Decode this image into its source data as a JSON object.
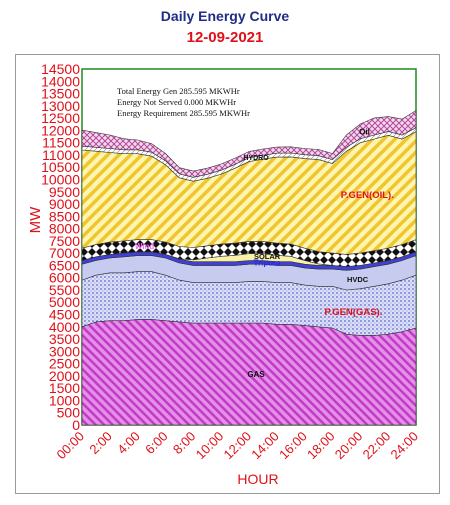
{
  "title": "Daily Energy Curve",
  "subtitle": "12-09-2021",
  "chart_data": {
    "type": "area",
    "stacked": true,
    "xlabel": "HOUR",
    "ylabel": "MW",
    "ylim": [
      0,
      14500
    ],
    "ytick_step": 500,
    "xlim": [
      0,
      24
    ],
    "xticks": [
      "00:00",
      "2:00",
      "4:00",
      "6:00",
      "8:00",
      "10:00",
      "12:00",
      "14:00",
      "16:00",
      "18:00",
      "20:00",
      "22:00",
      "24:00"
    ],
    "x": [
      0,
      1,
      2,
      3,
      4,
      5,
      6,
      7,
      8,
      9,
      10,
      11,
      12,
      13,
      14,
      15,
      16,
      17,
      18,
      19,
      20,
      21,
      22,
      23,
      24
    ],
    "annotations": [
      "Total Energy Gen 285.595 MKWHr",
      "Energy Not Served  0.000 MKWHr",
      "Energy Requirement    285.595 MKWHr"
    ],
    "series": [
      {
        "name": "GAS",
        "color": "#d24fd6",
        "values": [
          4000,
          4200,
          4250,
          4250,
          4300,
          4300,
          4250,
          4200,
          4150,
          4150,
          4150,
          4150,
          4150,
          4150,
          4100,
          4100,
          4050,
          4000,
          3950,
          3700,
          3650,
          3650,
          3700,
          3800,
          3950
        ]
      },
      {
        "name": "P.GEN(GAS).",
        "color": "#6c78d8",
        "values": [
          1900,
          1900,
          1950,
          1950,
          1950,
          1950,
          1850,
          1700,
          1650,
          1650,
          1650,
          1650,
          1700,
          1700,
          1700,
          1700,
          1650,
          1650,
          1700,
          1800,
          1900,
          2000,
          2050,
          2100,
          2150
        ]
      },
      {
        "name": "HVDC",
        "color": "#bfc3ee",
        "values": [
          650,
          600,
          600,
          650,
          650,
          650,
          700,
          700,
          700,
          700,
          700,
          700,
          700,
          700,
          700,
          700,
          700,
          700,
          700,
          800,
          800,
          800,
          800,
          800,
          800
        ]
      },
      {
        "name": "Tripura",
        "color": "#3b3bd8",
        "values": [
          150,
          150,
          150,
          150,
          150,
          150,
          150,
          150,
          150,
          150,
          150,
          150,
          150,
          150,
          150,
          150,
          150,
          150,
          150,
          150,
          150,
          150,
          150,
          150,
          150
        ]
      },
      {
        "name": "SOLAR",
        "color": "#f4f0a0",
        "values": [
          0,
          0,
          0,
          0,
          0,
          0,
          0,
          20,
          80,
          150,
          220,
          260,
          280,
          280,
          260,
          220,
          150,
          60,
          0,
          0,
          0,
          0,
          0,
          0,
          0
        ]
      },
      {
        "name": "Wind",
        "color": "#111111",
        "values": [
          500,
          500,
          500,
          500,
          500,
          500,
          500,
          500,
          500,
          500,
          500,
          500,
          500,
          500,
          500,
          500,
          500,
          500,
          500,
          500,
          500,
          500,
          500,
          500,
          500
        ]
      },
      {
        "name": "P.GEN(OIL).",
        "color": "#f2d23a",
        "values": [
          4000,
          3800,
          3650,
          3550,
          3500,
          3400,
          3150,
          2800,
          2700,
          2750,
          2850,
          3050,
          3250,
          3350,
          3500,
          3550,
          3650,
          3750,
          3650,
          4200,
          4500,
          4550,
          4600,
          4300,
          4400
        ]
      },
      {
        "name": "HYDRO",
        "color": "#ffffff",
        "values": [
          160,
          160,
          160,
          160,
          160,
          160,
          160,
          160,
          160,
          160,
          160,
          160,
          160,
          160,
          160,
          160,
          160,
          160,
          160,
          160,
          160,
          160,
          160,
          160,
          160
        ]
      },
      {
        "name": "Oil",
        "color": "#c86ab0",
        "values": [
          650,
          600,
          550,
          450,
          400,
          350,
          300,
          250,
          250,
          250,
          250,
          250,
          250,
          250,
          250,
          250,
          250,
          250,
          250,
          500,
          600,
          700,
          600,
          650,
          700
        ]
      }
    ]
  }
}
